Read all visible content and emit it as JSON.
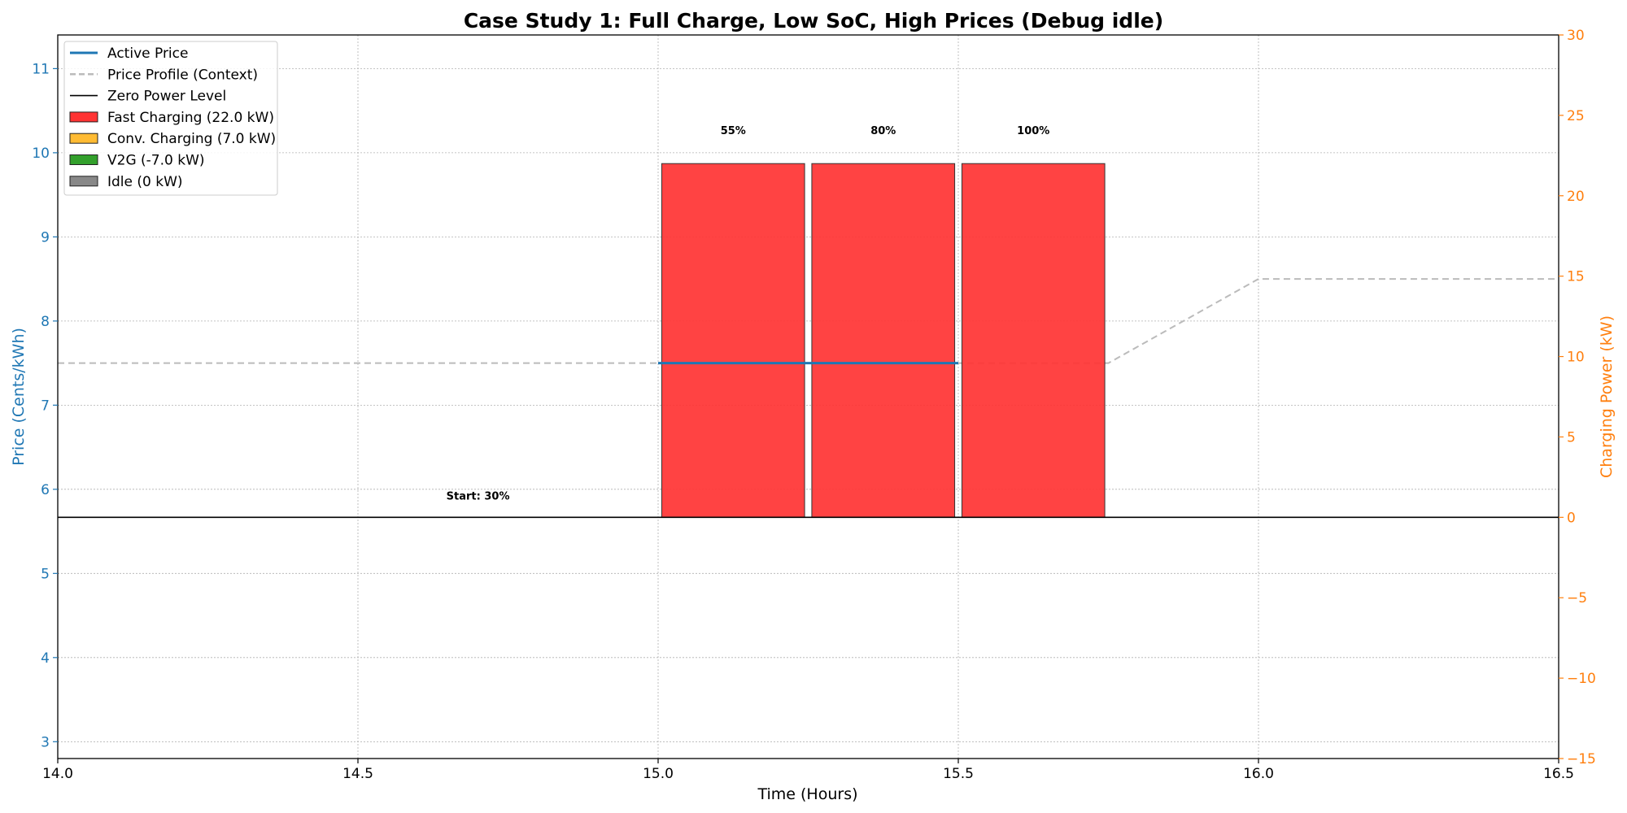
{
  "chart_data": {
    "type": "bar",
    "title": "Case Study 1: Full Charge, Low SoC, High Prices (Debug idle)",
    "xlabel": "Time (Hours)",
    "ylabel_left": "Price (Cents/kWh)",
    "ylabel_right": "Charging Power (kW)",
    "xlim": [
      14.0,
      16.5
    ],
    "ylim_left": [
      2.8,
      11.4
    ],
    "ylim_right": [
      -15,
      30
    ],
    "x_ticks": [
      "14.0",
      "14.5",
      "15.0",
      "15.5",
      "16.0",
      "16.5"
    ],
    "y_left_ticks": [
      "3",
      "4",
      "5",
      "6",
      "7",
      "8",
      "9",
      "10",
      "11"
    ],
    "y_right_ticks": [
      "−15",
      "−10",
      "−5",
      "0",
      "5",
      "10",
      "15",
      "20",
      "25",
      "30"
    ],
    "grid": true,
    "legend_position": "upper-left",
    "colors": {
      "active_price": "#1f77b4",
      "price_profile": "#bbbbbb",
      "zero_power": "#000000",
      "fast_charging": "#ff3333",
      "conv_charging": "#ffbb33",
      "v2g": "#33a02c",
      "idle": "#888888",
      "left_axis": "#1f77b4",
      "right_axis": "#ff7f0e"
    },
    "legend": [
      {
        "label": "Active Price",
        "kind": "line-solid",
        "color": "#1f77b4"
      },
      {
        "label": "Price Profile (Context)",
        "kind": "line-dashed",
        "color": "#bbbbbb"
      },
      {
        "label": "Zero Power Level",
        "kind": "line-thin",
        "color": "#000000"
      },
      {
        "label": "Fast Charging (22.0 kW)",
        "kind": "patch",
        "color": "#ff3333"
      },
      {
        "label": "Conv. Charging (7.0 kW)",
        "kind": "patch",
        "color": "#ffbb33"
      },
      {
        "label": "V2G (-7.0 kW)",
        "kind": "patch",
        "color": "#33a02c"
      },
      {
        "label": "Idle (0 kW)",
        "kind": "patch",
        "color": "#888888"
      }
    ],
    "price_profile": {
      "x": [
        14.0,
        15.75,
        16.0,
        16.5
      ],
      "y": [
        7.5,
        7.5,
        8.5,
        8.5
      ]
    },
    "active_price": {
      "x": [
        15.0,
        15.5
      ],
      "y": [
        7.5,
        7.5
      ]
    },
    "zero_power_level": 0,
    "bars": [
      {
        "start": 15.0,
        "end": 15.25,
        "power": 22.0,
        "mode": "fast_charging",
        "soc_label": "55%"
      },
      {
        "start": 15.25,
        "end": 15.5,
        "power": 22.0,
        "mode": "fast_charging",
        "soc_label": "80%"
      },
      {
        "start": 15.5,
        "end": 15.75,
        "power": 22.0,
        "mode": "fast_charging",
        "soc_label": "100%"
      }
    ],
    "start_annotation": {
      "text": "Start: 30%",
      "x": 14.7
    }
  }
}
